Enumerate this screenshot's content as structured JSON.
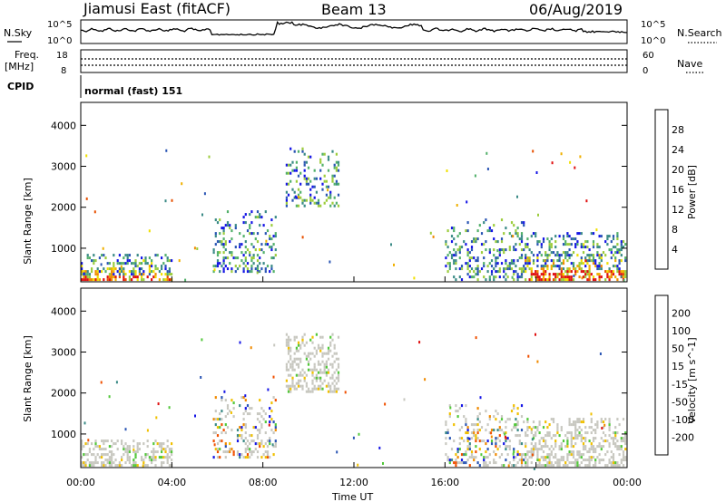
{
  "header": {
    "radar_title": "Jiamusi East (fitACF)",
    "beam": "Beam 13",
    "date": "06/Aug/2019"
  },
  "noise_panel": {
    "left_label": "N.Sky",
    "right_label": "N.Search",
    "left_ticks": [
      "10^5",
      "10^0"
    ],
    "right_ticks": [
      "10^5",
      "10^0"
    ]
  },
  "freq_panel": {
    "left_label_line1": "Freq.",
    "left_label_line2": "[MHz]",
    "left_ticks": [
      "18",
      "8"
    ],
    "right_label": "Nave",
    "right_ticks": [
      "60",
      "0"
    ]
  },
  "cpid_panel": {
    "label": "CPID",
    "mode": "normal (fast) 151"
  },
  "time_axis": {
    "title": "Time UT",
    "ticks": [
      "00:00",
      "04:00",
      "08:00",
      "12:00",
      "16:00",
      "20:00",
      "00:00"
    ]
  },
  "chart_data": [
    {
      "type": "heatmap",
      "title": "",
      "xlabel": "",
      "ylabel": "Slant Range [km]",
      "colorbar_label": "Power [dB]",
      "y_ticks": [
        "1000",
        "2000",
        "3000",
        "4000"
      ],
      "ylim": [
        180,
        4560
      ],
      "xlim_hours": [
        0,
        24
      ],
      "colorbar_ticks": [
        "4",
        "8",
        "12",
        "16",
        "20",
        "24",
        "28"
      ],
      "colorbar_colors": [
        "#1414e6",
        "#2a55b4",
        "#3a8a86",
        "#52b06a",
        "#9ccc3c",
        "#f0e000",
        "#f0b000",
        "#f08a00",
        "#e85000",
        "#e01010"
      ],
      "echo_regions": [
        {
          "t0": 0.0,
          "t1": 4.0,
          "r0": 200,
          "r1": 850,
          "level": "strong"
        },
        {
          "t0": 5.8,
          "t1": 8.6,
          "r0": 400,
          "r1": 1900,
          "level": "medium"
        },
        {
          "t0": 9.0,
          "t1": 11.4,
          "r0": 2000,
          "r1": 3450,
          "level": "medium"
        },
        {
          "t0": 16.0,
          "t1": 19.5,
          "r0": 200,
          "r1": 1700,
          "level": "medium"
        },
        {
          "t0": 19.5,
          "t1": 24.0,
          "r0": 200,
          "r1": 1400,
          "level": "strong"
        }
      ]
    },
    {
      "type": "heatmap",
      "title": "",
      "xlabel": "Time UT",
      "ylabel": "Slant Range [km]",
      "colorbar_label": "Velocity [m s^-1]",
      "y_ticks": [
        "1000",
        "2000",
        "3000",
        "4000"
      ],
      "ylim": [
        180,
        4560
      ],
      "xlim_hours": [
        0,
        24
      ],
      "colorbar_ticks": [
        "200",
        "100",
        "50",
        "15",
        "-15",
        "-50",
        "-100",
        "-200"
      ],
      "colorbar_colors": [
        "#1414e6",
        "#2a55b4",
        "#3a8a86",
        "#52c83a",
        "#c8c8c0",
        "#f0c000",
        "#f08a00",
        "#f05000",
        "#e01010"
      ],
      "echo_regions": [
        {
          "t0": 0.0,
          "t1": 4.0,
          "r0": 200,
          "r1": 850,
          "level": "ground"
        },
        {
          "t0": 5.8,
          "t1": 8.6,
          "r0": 400,
          "r1": 1900,
          "level": "mixed"
        },
        {
          "t0": 9.0,
          "t1": 11.4,
          "r0": 2000,
          "r1": 3450,
          "level": "ground"
        },
        {
          "t0": 16.0,
          "t1": 19.5,
          "r0": 200,
          "r1": 1700,
          "level": "mixed"
        },
        {
          "t0": 19.5,
          "t1": 24.0,
          "r0": 200,
          "r1": 1400,
          "level": "ground"
        }
      ]
    }
  ]
}
